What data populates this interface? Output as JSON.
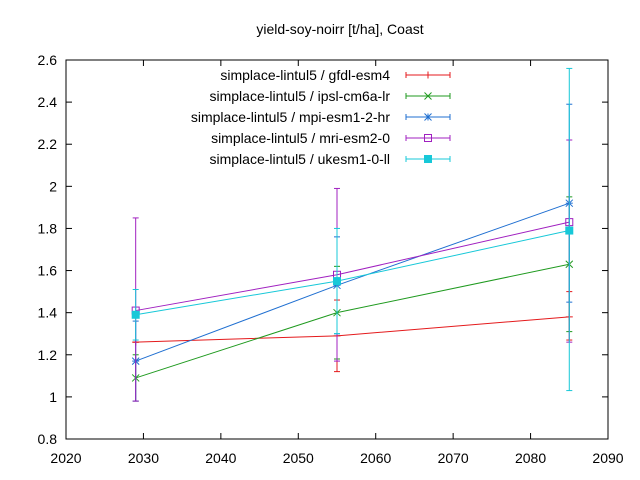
{
  "chart_data": {
    "type": "line",
    "title": "yield-soy-noirr [t/ha], Coast",
    "xlabel": "",
    "ylabel": "",
    "xlim": [
      2020,
      2090
    ],
    "ylim": [
      0.8,
      2.6
    ],
    "x_ticks": [
      2020,
      2030,
      2040,
      2050,
      2060,
      2070,
      2080,
      2090
    ],
    "y_ticks": [
      0.8,
      1,
      1.2,
      1.4,
      1.6,
      1.8,
      2,
      2.2,
      2.4,
      2.6
    ],
    "x_tick_labels": [
      "2020",
      "2030",
      "2040",
      "2050",
      "2060",
      "2070",
      "2080",
      "2090"
    ],
    "y_tick_labels": [
      "0.8",
      "1",
      "1.2",
      "1.4",
      "1.6",
      "1.8",
      "2",
      "2.2",
      "2.4",
      "2.6"
    ],
    "grid": false,
    "legend_position": "top-right",
    "series": [
      {
        "name": "simplace-lintul5 / gfdl-esm4",
        "color": "#e41a1c",
        "marker": "plus",
        "x": [
          2029,
          2055,
          2085
        ],
        "y": [
          1.26,
          1.29,
          1.38
        ],
        "err_low": [
          1.26,
          1.12,
          1.27
        ],
        "err_high": [
          1.26,
          1.46,
          1.5
        ]
      },
      {
        "name": "simplace-lintul5 / ipsl-cm6a-lr",
        "color": "#1f9a1f",
        "marker": "x",
        "x": [
          2029,
          2055,
          2085
        ],
        "y": [
          1.09,
          1.4,
          1.63
        ],
        "err_low": [
          0.98,
          1.18,
          1.31
        ],
        "err_high": [
          1.2,
          1.62,
          1.95
        ]
      },
      {
        "name": "simplace-lintul5 / mpi-esm1-2-hr",
        "color": "#1f6fd1",
        "marker": "star",
        "x": [
          2029,
          2055,
          2085
        ],
        "y": [
          1.17,
          1.53,
          1.92
        ],
        "err_low": [
          0.98,
          1.3,
          1.45
        ],
        "err_high": [
          1.36,
          1.76,
          2.39
        ]
      },
      {
        "name": "simplace-lintul5 / mri-esm2-0",
        "color": "#a020c0",
        "marker": "square-open",
        "x": [
          2029,
          2055,
          2085
        ],
        "y": [
          1.41,
          1.58,
          1.83
        ],
        "err_low": [
          0.98,
          1.17,
          1.26
        ],
        "err_high": [
          1.85,
          1.99,
          2.22
        ]
      },
      {
        "name": "simplace-lintul5 / ukesm1-0-ll",
        "color": "#17c8d8",
        "marker": "square-filled",
        "x": [
          2029,
          2055,
          2085
        ],
        "y": [
          1.39,
          1.55,
          1.79
        ],
        "err_low": [
          1.27,
          1.3,
          1.03
        ],
        "err_high": [
          1.51,
          1.8,
          2.56
        ]
      }
    ]
  }
}
